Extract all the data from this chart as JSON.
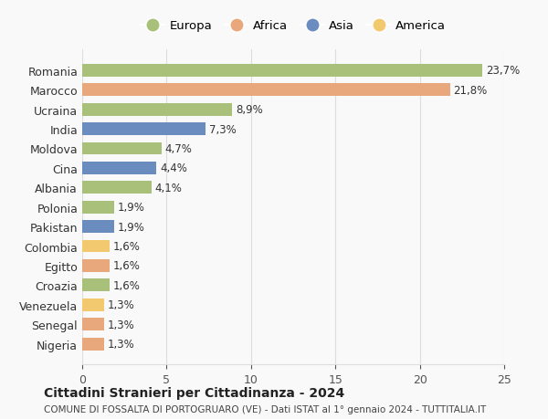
{
  "countries": [
    "Romania",
    "Marocco",
    "Ucraina",
    "India",
    "Moldova",
    "Cina",
    "Albania",
    "Polonia",
    "Pakistan",
    "Colombia",
    "Egitto",
    "Croazia",
    "Venezuela",
    "Senegal",
    "Nigeria"
  ],
  "values": [
    23.7,
    21.8,
    8.9,
    7.3,
    4.7,
    4.4,
    4.1,
    1.9,
    1.9,
    1.6,
    1.6,
    1.6,
    1.3,
    1.3,
    1.3
  ],
  "labels": [
    "23,7%",
    "21,8%",
    "8,9%",
    "7,3%",
    "4,7%",
    "4,4%",
    "4,1%",
    "1,9%",
    "1,9%",
    "1,6%",
    "1,6%",
    "1,6%",
    "1,3%",
    "1,3%",
    "1,3%"
  ],
  "continents": [
    "Europa",
    "Africa",
    "Europa",
    "Asia",
    "Europa",
    "Asia",
    "Europa",
    "Europa",
    "Asia",
    "America",
    "Africa",
    "Europa",
    "America",
    "Africa",
    "Africa"
  ],
  "colors": {
    "Europa": "#a8c07a",
    "Africa": "#e8a87c",
    "Asia": "#6b8cbe",
    "America": "#f2c96e"
  },
  "legend_order": [
    "Europa",
    "Africa",
    "Asia",
    "America"
  ],
  "title": "Cittadini Stranieri per Cittadinanza - 2024",
  "subtitle": "COMUNE DI FOSSALTA DI PORTOGRUARO (VE) - Dati ISTAT al 1° gennaio 2024 - TUTTITALIA.IT",
  "xlim": [
    0,
    25
  ],
  "xticks": [
    0,
    5,
    10,
    15,
    20,
    25
  ],
  "background_color": "#f9f9f9",
  "grid_color": "#dddddd"
}
